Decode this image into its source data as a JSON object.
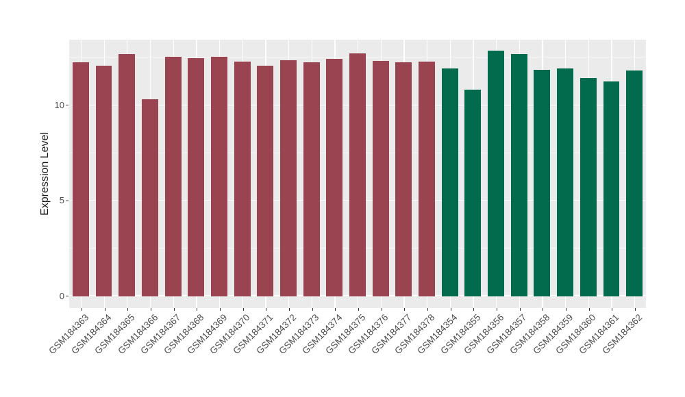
{
  "chart_data": {
    "type": "bar",
    "title": "",
    "xlabel": "",
    "ylabel": "Expression Level",
    "yticks": [
      0,
      5,
      10
    ],
    "minor_ticks": [
      2.5,
      7.5,
      12.5
    ],
    "ylim": [
      -0.62,
      13.44
    ],
    "grid": "on",
    "legend": "none",
    "panel_background": "#EBEBEB",
    "gridline_color": "#FFFFFF",
    "axis_text_color": "#4D4D4D",
    "group_colors": {
      "left_group": "#9A4451",
      "right_group": "#026A4D"
    },
    "bar_width_fraction": 0.71,
    "bars": [
      {
        "label": "GSM184363",
        "value": 12.27,
        "group": "left_group"
      },
      {
        "label": "GSM184364",
        "value": 12.08,
        "group": "left_group"
      },
      {
        "label": "GSM184365",
        "value": 12.69,
        "group": "left_group"
      },
      {
        "label": "GSM184366",
        "value": 10.32,
        "group": "left_group"
      },
      {
        "label": "GSM184367",
        "value": 12.56,
        "group": "left_group"
      },
      {
        "label": "GSM184368",
        "value": 12.48,
        "group": "left_group"
      },
      {
        "label": "GSM184369",
        "value": 12.53,
        "group": "left_group"
      },
      {
        "label": "GSM184370",
        "value": 12.3,
        "group": "left_group"
      },
      {
        "label": "GSM184371",
        "value": 12.09,
        "group": "left_group"
      },
      {
        "label": "GSM184372",
        "value": 12.37,
        "group": "left_group"
      },
      {
        "label": "GSM184373",
        "value": 12.26,
        "group": "left_group"
      },
      {
        "label": "GSM184374",
        "value": 12.42,
        "group": "left_group"
      },
      {
        "label": "GSM184375",
        "value": 12.73,
        "group": "left_group"
      },
      {
        "label": "GSM184376",
        "value": 12.33,
        "group": "left_group"
      },
      {
        "label": "GSM184377",
        "value": 12.27,
        "group": "left_group"
      },
      {
        "label": "GSM184378",
        "value": 12.28,
        "group": "left_group"
      },
      {
        "label": "GSM184354",
        "value": 11.94,
        "group": "right_group"
      },
      {
        "label": "GSM184355",
        "value": 10.84,
        "group": "right_group"
      },
      {
        "label": "GSM184356",
        "value": 12.86,
        "group": "right_group"
      },
      {
        "label": "GSM184357",
        "value": 12.7,
        "group": "right_group"
      },
      {
        "label": "GSM184358",
        "value": 11.86,
        "group": "right_group"
      },
      {
        "label": "GSM184359",
        "value": 11.94,
        "group": "right_group"
      },
      {
        "label": "GSM184360",
        "value": 11.42,
        "group": "right_group"
      },
      {
        "label": "GSM184361",
        "value": 11.24,
        "group": "right_group"
      },
      {
        "label": "GSM184362",
        "value": 11.84,
        "group": "right_group"
      }
    ]
  }
}
